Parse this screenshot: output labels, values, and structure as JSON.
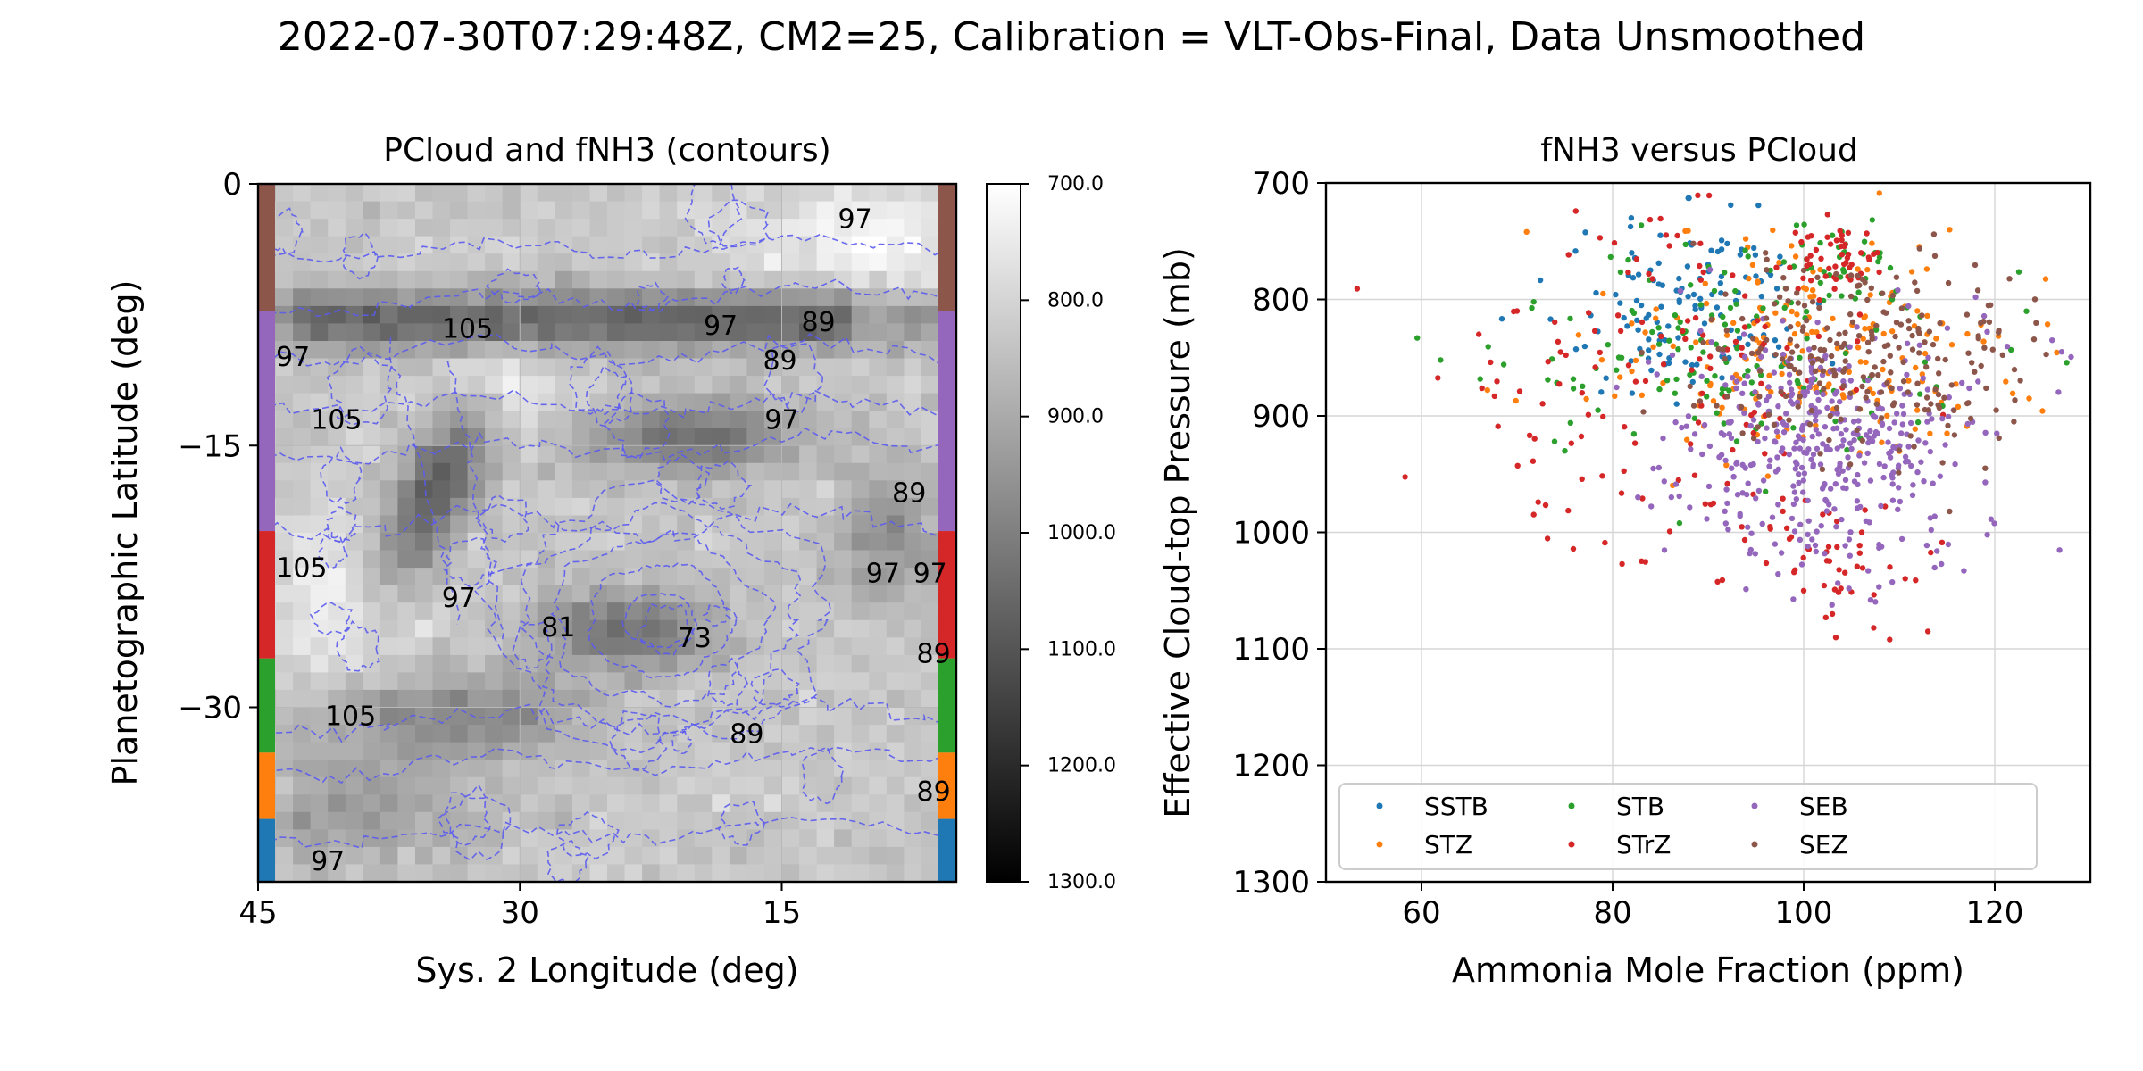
{
  "figure": {
    "suptitle": "2022-07-30T07:29:48Z, CM2=25, Calibration = VLT-Obs-Final, Data Unsmoothed"
  },
  "chart_data": [
    {
      "type": "heatmap",
      "title": "PCloud and fNH3 (contours)",
      "xlabel": "Sys. 2 Longitude (deg)",
      "ylabel": "Planetographic Latitude (deg)",
      "xlim": [
        45,
        5
      ],
      "ylim": [
        -40,
        0
      ],
      "xticks": [
        45,
        30,
        15
      ],
      "xtick_labels": [
        "45",
        "30",
        "15"
      ],
      "yticks": [
        0,
        -15,
        -30
      ],
      "ytick_labels": [
        "0",
        "−15",
        "−30"
      ],
      "colorscale": "gray",
      "colorbar": {
        "range": [
          700,
          1300
        ],
        "ticks": [
          700,
          800,
          900,
          1000,
          1100,
          1200,
          1300
        ],
        "tick_labels": [
          "700.0",
          "800.0",
          "900.0",
          "1000.0",
          "1100.0",
          "1200.0",
          "1300.0"
        ]
      },
      "contour_levels": [
        73,
        81,
        89,
        97,
        105
      ],
      "contour_labels": [
        {
          "text": "105",
          "lon": 33.0,
          "lat": -8.4
        },
        {
          "text": "105",
          "lon": 40.5,
          "lat": -13.6
        },
        {
          "text": "105",
          "lon": 42.5,
          "lat": -22.1
        },
        {
          "text": "105",
          "lon": 39.7,
          "lat": -30.6
        },
        {
          "text": "97",
          "lon": 43.0,
          "lat": -10.0
        },
        {
          "text": "97",
          "lon": 33.5,
          "lat": -23.8
        },
        {
          "text": "97",
          "lon": 18.5,
          "lat": -8.2
        },
        {
          "text": "97",
          "lon": 15.0,
          "lat": -13.6
        },
        {
          "text": "97",
          "lon": 10.8,
          "lat": -2.1
        },
        {
          "text": "97",
          "lon": 9.2,
          "lat": -22.4
        },
        {
          "text": "97",
          "lon": 6.5,
          "lat": -22.4
        },
        {
          "text": "97",
          "lon": 41.0,
          "lat": -38.9
        },
        {
          "text": "89",
          "lon": 12.9,
          "lat": -8.0
        },
        {
          "text": "89",
          "lon": 15.1,
          "lat": -10.2
        },
        {
          "text": "89",
          "lon": 7.7,
          "lat": -17.8
        },
        {
          "text": "89",
          "lon": 17.0,
          "lat": -31.6
        },
        {
          "text": "89",
          "lon": 6.3,
          "lat": -27.0
        },
        {
          "text": "89",
          "lon": 6.3,
          "lat": -34.9
        },
        {
          "text": "81",
          "lon": 27.8,
          "lat": -25.5
        },
        {
          "text": "73",
          "lon": 20.0,
          "lat": -26.1
        }
      ],
      "belt_bands": [
        {
          "name": "SEZ",
          "lat_range": [
            0,
            -7.3
          ],
          "color": "#8c564b"
        },
        {
          "name": "SEB",
          "lat_range": [
            -7.3,
            -19.9
          ],
          "color": "#9467bd"
        },
        {
          "name": "STrZ",
          "lat_range": [
            -19.9,
            -27.2
          ],
          "color": "#d62728"
        },
        {
          "name": "STB",
          "lat_range": [
            -27.2,
            -32.6
          ],
          "color": "#2ca02c"
        },
        {
          "name": "STZ",
          "lat_range": [
            -32.6,
            -36.4
          ],
          "color": "#ff7f0e"
        },
        {
          "name": "SSTB",
          "lat_range": [
            -36.4,
            -40.0
          ],
          "color": "#1f77b4"
        }
      ]
    },
    {
      "type": "scatter",
      "title": "fNH3 versus PCloud",
      "xlabel": "Ammonia Mole Fraction (ppm)",
      "ylabel": "Effective Cloud-top Pressure (mb)",
      "xlim": [
        50,
        130
      ],
      "ylim": [
        1300,
        700
      ],
      "xticks": [
        60,
        80,
        100,
        120
      ],
      "xtick_labels": [
        "60",
        "80",
        "100",
        "120"
      ],
      "yticks": [
        700,
        800,
        900,
        1000,
        1100,
        1200,
        1300
      ],
      "ytick_labels": [
        "700",
        "800",
        "900",
        "1000",
        "1100",
        "1200",
        "1300"
      ],
      "grid": true,
      "legend_position": "lower-center",
      "series": [
        {
          "name": "SSTB",
          "color": "#1f77b4",
          "centroid": [
            88,
            800
          ],
          "spread": [
            6,
            40
          ],
          "points": [
            [
              88,
              713
            ],
            [
              85,
              745
            ],
            [
              92,
              752
            ],
            [
              82,
              760
            ],
            [
              95,
              780
            ],
            [
              97,
              835
            ],
            [
              103,
              855
            ],
            [
              90,
              770
            ]
          ]
        },
        {
          "name": "STZ",
          "color": "#ff7f0e",
          "centroid": [
            100,
            845
          ],
          "spread": [
            10,
            45
          ],
          "points": [
            [
              71,
              742
            ],
            [
              79,
              795
            ],
            [
              100,
              790
            ],
            [
              108,
              905
            ],
            [
              115,
              915
            ],
            [
              95,
              880
            ]
          ]
        },
        {
          "name": "STB",
          "color": "#2ca02c",
          "centroid": [
            92,
            850
          ],
          "spread": [
            12,
            55
          ],
          "points": [
            [
              62,
              852
            ],
            [
              75,
              930
            ],
            [
              87,
              992
            ],
            [
              96,
              965
            ],
            [
              103,
              745
            ],
            [
              108,
              760
            ]
          ]
        },
        {
          "name": "STrZ",
          "color": "#d62728",
          "centroid": [
            86,
            875
          ],
          "spread": [
            13,
            85
          ],
          "points": [
            [
              70,
              810
            ],
            [
              66,
              830
            ],
            [
              100,
              1050
            ],
            [
              103,
              1070
            ],
            [
              109,
              1092
            ],
            [
              113,
              1085
            ],
            [
              104,
              745
            ],
            [
              106,
              760
            ]
          ]
        },
        {
          "name": "SEB",
          "color": "#9467bd",
          "centroid": [
            102,
            925
          ],
          "spread": [
            8,
            55
          ],
          "points": [
            [
              126,
              835
            ],
            [
              127,
              845
            ],
            [
              118,
              798
            ],
            [
              107,
              1058
            ],
            [
              97,
              1010
            ],
            [
              92,
              975
            ]
          ]
        },
        {
          "name": "SEZ",
          "color": "#8c564b",
          "centroid": [
            106,
            850
          ],
          "spread": [
            8,
            45
          ],
          "points": [
            [
              122,
              905
            ],
            [
              119,
              945
            ],
            [
              96,
              760
            ],
            [
              100,
              775
            ],
            [
              112,
              825
            ]
          ]
        }
      ]
    }
  ]
}
